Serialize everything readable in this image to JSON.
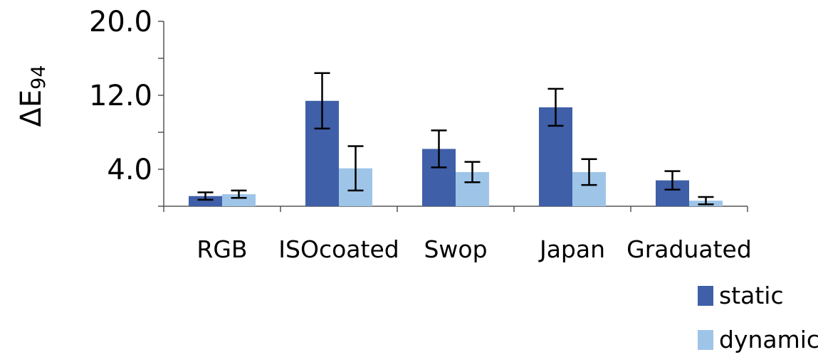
{
  "chart_data": {
    "type": "bar",
    "title": "",
    "xlabel": "",
    "ylabel": "ΔE",
    "ylabel_subscript": "94",
    "ylim": [
      0,
      20
    ],
    "yticks": [
      0,
      4,
      8,
      12,
      16,
      20
    ],
    "ytick_labels": [
      "",
      "4.0",
      "",
      "12.0",
      "",
      "20.0"
    ],
    "grid": false,
    "legend_position": "bottom-right",
    "categories": [
      "RGB",
      "ISOcoated",
      "Swop",
      "Japan",
      "Graduated"
    ],
    "series": [
      {
        "name": "static",
        "color": "#3f5fa8",
        "values": [
          1.1,
          11.4,
          6.2,
          10.7,
          2.8
        ],
        "error": [
          0.4,
          3.0,
          2.0,
          2.0,
          1.0
        ]
      },
      {
        "name": "dynamic",
        "color": "#9ec5e8",
        "values": [
          1.3,
          4.1,
          3.7,
          3.7,
          0.6
        ],
        "error": [
          0.4,
          2.4,
          1.1,
          1.4,
          0.4
        ]
      }
    ]
  }
}
